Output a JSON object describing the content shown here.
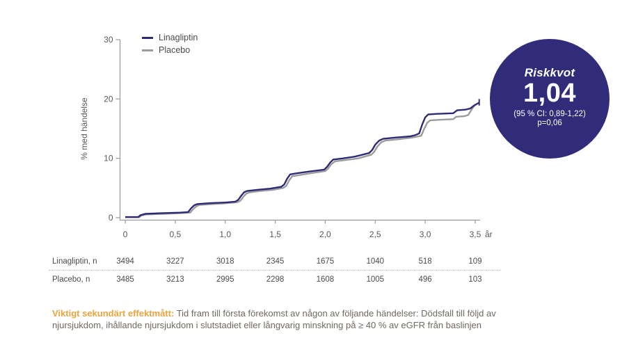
{
  "chart": {
    "legend": [
      {
        "label": "Linagliptin",
        "color": "#2e2a74"
      },
      {
        "label": "Placebo",
        "color": "#9b9b9b"
      }
    ],
    "y_axis": {
      "label": "% med händelse",
      "ticks": [
        0,
        10,
        20,
        30
      ]
    },
    "x_axis": {
      "tick_labels": [
        "0",
        "0,5",
        "1,0",
        "1,5",
        "2,0",
        "2,5",
        "3,0",
        "3,5"
      ],
      "tick_values": [
        0,
        0.5,
        1,
        1.5,
        2,
        2.5,
        3,
        3.5
      ],
      "unit": "år"
    }
  },
  "chart_data": {
    "type": "line",
    "subtype": "kaplan-meier-cumulative-incidence",
    "title": "",
    "xlabel": "år",
    "ylabel": "% med händelse",
    "xlim": [
      0,
      3.5
    ],
    "ylim": [
      0,
      30
    ],
    "grid": false,
    "legend_position": "top-left",
    "series": [
      {
        "name": "Linagliptin",
        "color": "#2e2a74",
        "points": [
          [
            0,
            0.1
          ],
          [
            0.13,
            0.1
          ],
          [
            0.15,
            0.4
          ],
          [
            0.2,
            0.65
          ],
          [
            0.35,
            0.75
          ],
          [
            0.55,
            0.85
          ],
          [
            0.63,
            0.95
          ],
          [
            0.66,
            1.6
          ],
          [
            0.69,
            2.1
          ],
          [
            0.72,
            2.3
          ],
          [
            0.85,
            2.45
          ],
          [
            1.0,
            2.55
          ],
          [
            1.1,
            2.7
          ],
          [
            1.13,
            3.0
          ],
          [
            1.16,
            3.7
          ],
          [
            1.19,
            4.3
          ],
          [
            1.22,
            4.5
          ],
          [
            1.32,
            4.7
          ],
          [
            1.45,
            4.9
          ],
          [
            1.56,
            5.2
          ],
          [
            1.59,
            5.6
          ],
          [
            1.62,
            6.6
          ],
          [
            1.65,
            7.3
          ],
          [
            1.72,
            7.5
          ],
          [
            1.85,
            7.8
          ],
          [
            1.99,
            8.1
          ],
          [
            2.02,
            8.6
          ],
          [
            2.05,
            9.3
          ],
          [
            2.08,
            9.8
          ],
          [
            2.18,
            10.0
          ],
          [
            2.3,
            10.3
          ],
          [
            2.44,
            10.9
          ],
          [
            2.47,
            11.4
          ],
          [
            2.5,
            12.3
          ],
          [
            2.54,
            13.0
          ],
          [
            2.58,
            13.3
          ],
          [
            2.7,
            13.5
          ],
          [
            2.85,
            13.7
          ],
          [
            2.9,
            13.9
          ],
          [
            2.94,
            14.2
          ],
          [
            2.97,
            15.7
          ],
          [
            3.0,
            16.9
          ],
          [
            3.03,
            17.4
          ],
          [
            3.12,
            17.5
          ],
          [
            3.28,
            17.6
          ],
          [
            3.32,
            18.1
          ],
          [
            3.4,
            18.2
          ],
          [
            3.45,
            18.4
          ],
          [
            3.48,
            18.8
          ],
          [
            3.51,
            19.1
          ],
          [
            3.54,
            19.4
          ]
        ],
        "end_censor_tick": {
          "t": 3.54,
          "from": 18.9,
          "to": 20.0
        }
      },
      {
        "name": "Placebo",
        "color": "#9b9b9b",
        "points": [
          [
            0,
            0.08
          ],
          [
            0.14,
            0.08
          ],
          [
            0.16,
            0.35
          ],
          [
            0.21,
            0.55
          ],
          [
            0.38,
            0.65
          ],
          [
            0.58,
            0.78
          ],
          [
            0.65,
            0.85
          ],
          [
            0.68,
            1.45
          ],
          [
            0.71,
            1.9
          ],
          [
            0.74,
            2.15
          ],
          [
            0.88,
            2.3
          ],
          [
            1.02,
            2.45
          ],
          [
            1.12,
            2.6
          ],
          [
            1.15,
            2.85
          ],
          [
            1.18,
            3.5
          ],
          [
            1.21,
            4.05
          ],
          [
            1.24,
            4.25
          ],
          [
            1.35,
            4.5
          ],
          [
            1.48,
            4.7
          ],
          [
            1.58,
            5.0
          ],
          [
            1.61,
            5.35
          ],
          [
            1.64,
            6.3
          ],
          [
            1.67,
            7.0
          ],
          [
            1.75,
            7.2
          ],
          [
            1.88,
            7.55
          ],
          [
            2.0,
            7.85
          ],
          [
            2.03,
            8.3
          ],
          [
            2.06,
            9.0
          ],
          [
            2.1,
            9.5
          ],
          [
            2.2,
            9.7
          ],
          [
            2.33,
            10.0
          ],
          [
            2.46,
            10.6
          ],
          [
            2.49,
            11.1
          ],
          [
            2.52,
            11.95
          ],
          [
            2.56,
            12.7
          ],
          [
            2.6,
            13.0
          ],
          [
            2.72,
            13.2
          ],
          [
            2.87,
            13.5
          ],
          [
            2.92,
            13.65
          ],
          [
            2.96,
            13.8
          ],
          [
            2.99,
            15.0
          ],
          [
            3.02,
            16.0
          ],
          [
            3.05,
            16.4
          ],
          [
            3.15,
            16.5
          ],
          [
            3.28,
            16.6
          ],
          [
            3.31,
            17.0
          ],
          [
            3.39,
            17.1
          ],
          [
            3.43,
            17.3
          ],
          [
            3.46,
            18.1
          ],
          [
            3.5,
            19.1
          ]
        ]
      }
    ],
    "number_at_risk": {
      "time_points": [
        "0",
        "0,5",
        "1,0",
        "1,5",
        "2,0",
        "2,5",
        "3,0",
        "3,5"
      ],
      "rows": [
        {
          "label": "Linagliptin, n",
          "values": [
            "3494",
            "3227",
            "3018",
            "2345",
            "1675",
            "1040",
            "518",
            "109"
          ]
        },
        {
          "label": "Placebo, n",
          "values": [
            "3485",
            "3213",
            "2995",
            "2298",
            "1608",
            "1005",
            "496",
            "103"
          ]
        }
      ]
    }
  },
  "badge": {
    "title": "Riskkvot",
    "value": "1,04",
    "ci": "(95 % CI: 0,89-1,22)",
    "p": "p=0,06",
    "color": "#312c7a"
  },
  "footnote": {
    "highlight": "Viktigt sekundärt effektmått:",
    "text": "Tid fram till första förekomst av någon av följande händelser: Dödsfall till följd av njursjukdom, ihållande njursjukdom i slutstadiet eller långvarig minskning på ≥ 40 % av eGFR från baslinjen",
    "highlight_color": "#eca43e"
  }
}
